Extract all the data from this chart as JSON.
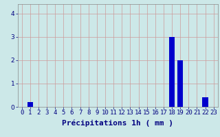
{
  "xlabel": "Précipitations 1h ( mm )",
  "values": [
    0,
    0.2,
    0,
    0,
    0,
    0,
    0,
    0,
    0,
    0,
    0,
    0,
    0,
    0,
    0,
    0,
    0,
    0,
    3.0,
    2.0,
    0,
    0,
    0.4,
    0
  ],
  "hours": [
    0,
    1,
    2,
    3,
    4,
    5,
    6,
    7,
    8,
    9,
    10,
    11,
    12,
    13,
    14,
    15,
    16,
    17,
    18,
    19,
    20,
    21,
    22,
    23
  ],
  "bar_color": "#0000cc",
  "background_color": "#cce8e8",
  "grid_color": "#cc9999",
  "tick_color": "#000080",
  "label_color": "#000080",
  "ylim": [
    0,
    4.4
  ],
  "yticks": [
    0,
    1,
    2,
    3,
    4
  ],
  "xlabel_fontsize": 8,
  "tick_fontsize": 6.5
}
